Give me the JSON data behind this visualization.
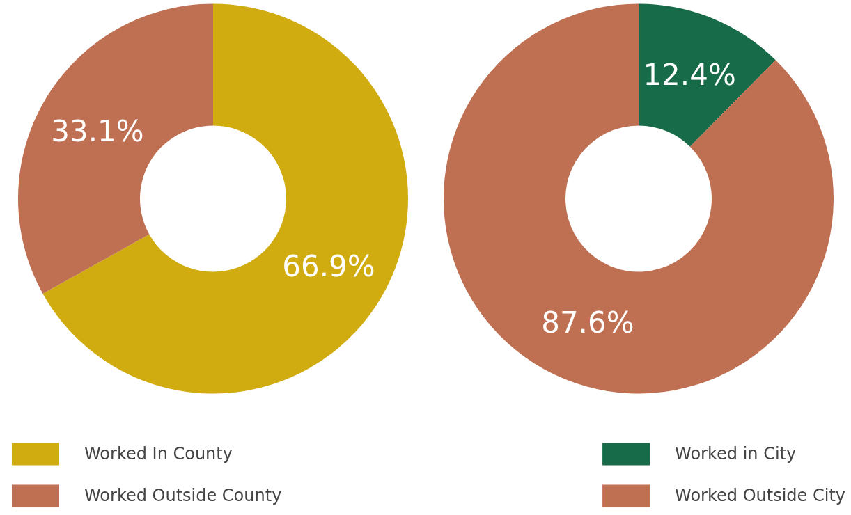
{
  "chart_data": [
    {
      "type": "donut",
      "categories": [
        "Worked In County",
        "Worked Outside County"
      ],
      "values": [
        66.9,
        33.1
      ],
      "colors": [
        "#d1ac10",
        "#bf6f52"
      ],
      "value_labels": [
        "66.9%",
        "33.1%"
      ],
      "legend": "bottom left"
    },
    {
      "type": "donut",
      "categories": [
        "Worked in City",
        "Worked Outside City"
      ],
      "values": [
        12.4,
        87.6
      ],
      "colors": [
        "#186b48",
        "#bf6f52"
      ],
      "value_labels": [
        "12.4%",
        "87.6%"
      ],
      "legend": "bottom right"
    }
  ]
}
